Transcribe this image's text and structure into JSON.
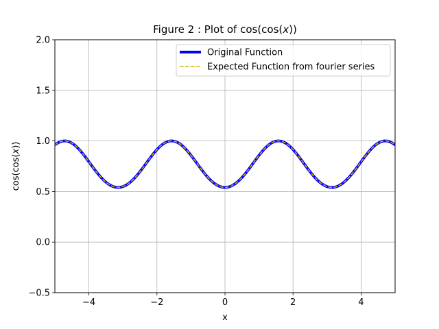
{
  "chart_data": {
    "type": "line",
    "title": "Figure 2 : Plot of cos(cos(x))",
    "title_parts": {
      "prefix": "Figure 2 : Plot of cos(cos(",
      "var": "x",
      "suffix": "))"
    },
    "xlabel": "x",
    "ylabel": "cos(cos(x))",
    "ylabel_parts": {
      "prefix": "cos(cos(",
      "var": "x",
      "suffix": "))"
    },
    "xlim": [
      -5,
      5
    ],
    "ylim": [
      -0.5,
      2.0
    ],
    "xticks": [
      -4,
      -2,
      0,
      2,
      4
    ],
    "xtick_labels": [
      "−4",
      "−2",
      "0",
      "2",
      "4"
    ],
    "yticks": [
      -0.5,
      0.0,
      0.5,
      1.0,
      1.5,
      2.0
    ],
    "ytick_labels": [
      "−0.5",
      "0.0",
      "0.5",
      "1.0",
      "1.5",
      "2.0"
    ],
    "grid": true,
    "legend_position": "top-right",
    "function": "cos(cos(x))",
    "series": [
      {
        "name": "Original Function",
        "color": "#0000ff",
        "style": "solid"
      },
      {
        "name": "Expected Function from fourier series",
        "color": "#d4b400",
        "style": "dashed"
      }
    ]
  }
}
